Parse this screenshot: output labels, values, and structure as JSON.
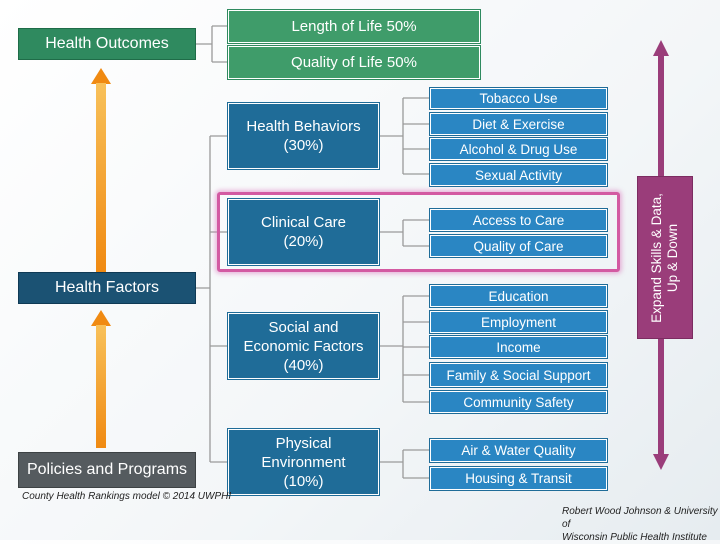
{
  "outcomes": {
    "title": "Health Outcomes",
    "items": [
      "Length of Life 50%",
      "Quality of Life 50%"
    ]
  },
  "factors": {
    "title": "Health Factors",
    "categories": [
      {
        "lines": [
          "Health Behaviors",
          "(30%)"
        ],
        "items": [
          "Tobacco Use",
          "Diet & Exercise",
          "Alcohol & Drug Use",
          "Sexual Activity"
        ]
      },
      {
        "lines": [
          "Clinical Care",
          "(20%)"
        ],
        "items": [
          "Access to Care",
          "Quality of Care"
        ]
      },
      {
        "lines": [
          "Social and",
          "Economic Factors",
          "(40%)"
        ],
        "items": [
          "Education",
          "Employment",
          "Income",
          "Family & Social Support",
          "Community Safety"
        ]
      },
      {
        "lines": [
          "Physical",
          "Environment",
          "(10%)"
        ],
        "items": [
          "Air & Water Quality",
          "Housing & Transit"
        ]
      }
    ]
  },
  "policies": {
    "title": "Policies and Programs"
  },
  "side_bar": {
    "lines": [
      "Expand Skills & Data,",
      "Up & Down"
    ]
  },
  "caption": "County Health Rankings model © 2014 UWPHI",
  "credit": [
    "Robert Wood Johnson & University of",
    "Wisconsin Public Health Institute"
  ],
  "colors": {
    "outcome_green": "#2f8a5f",
    "factor_navy": "#1b5273",
    "category_blue": "#1f6c98",
    "item_blue": "#2a86c3",
    "policy_gray": "#555b5f",
    "arrow_orange": "#f39a1f",
    "side_purple": "#9a3d7a",
    "highlight_pink": "#d35aa2"
  }
}
